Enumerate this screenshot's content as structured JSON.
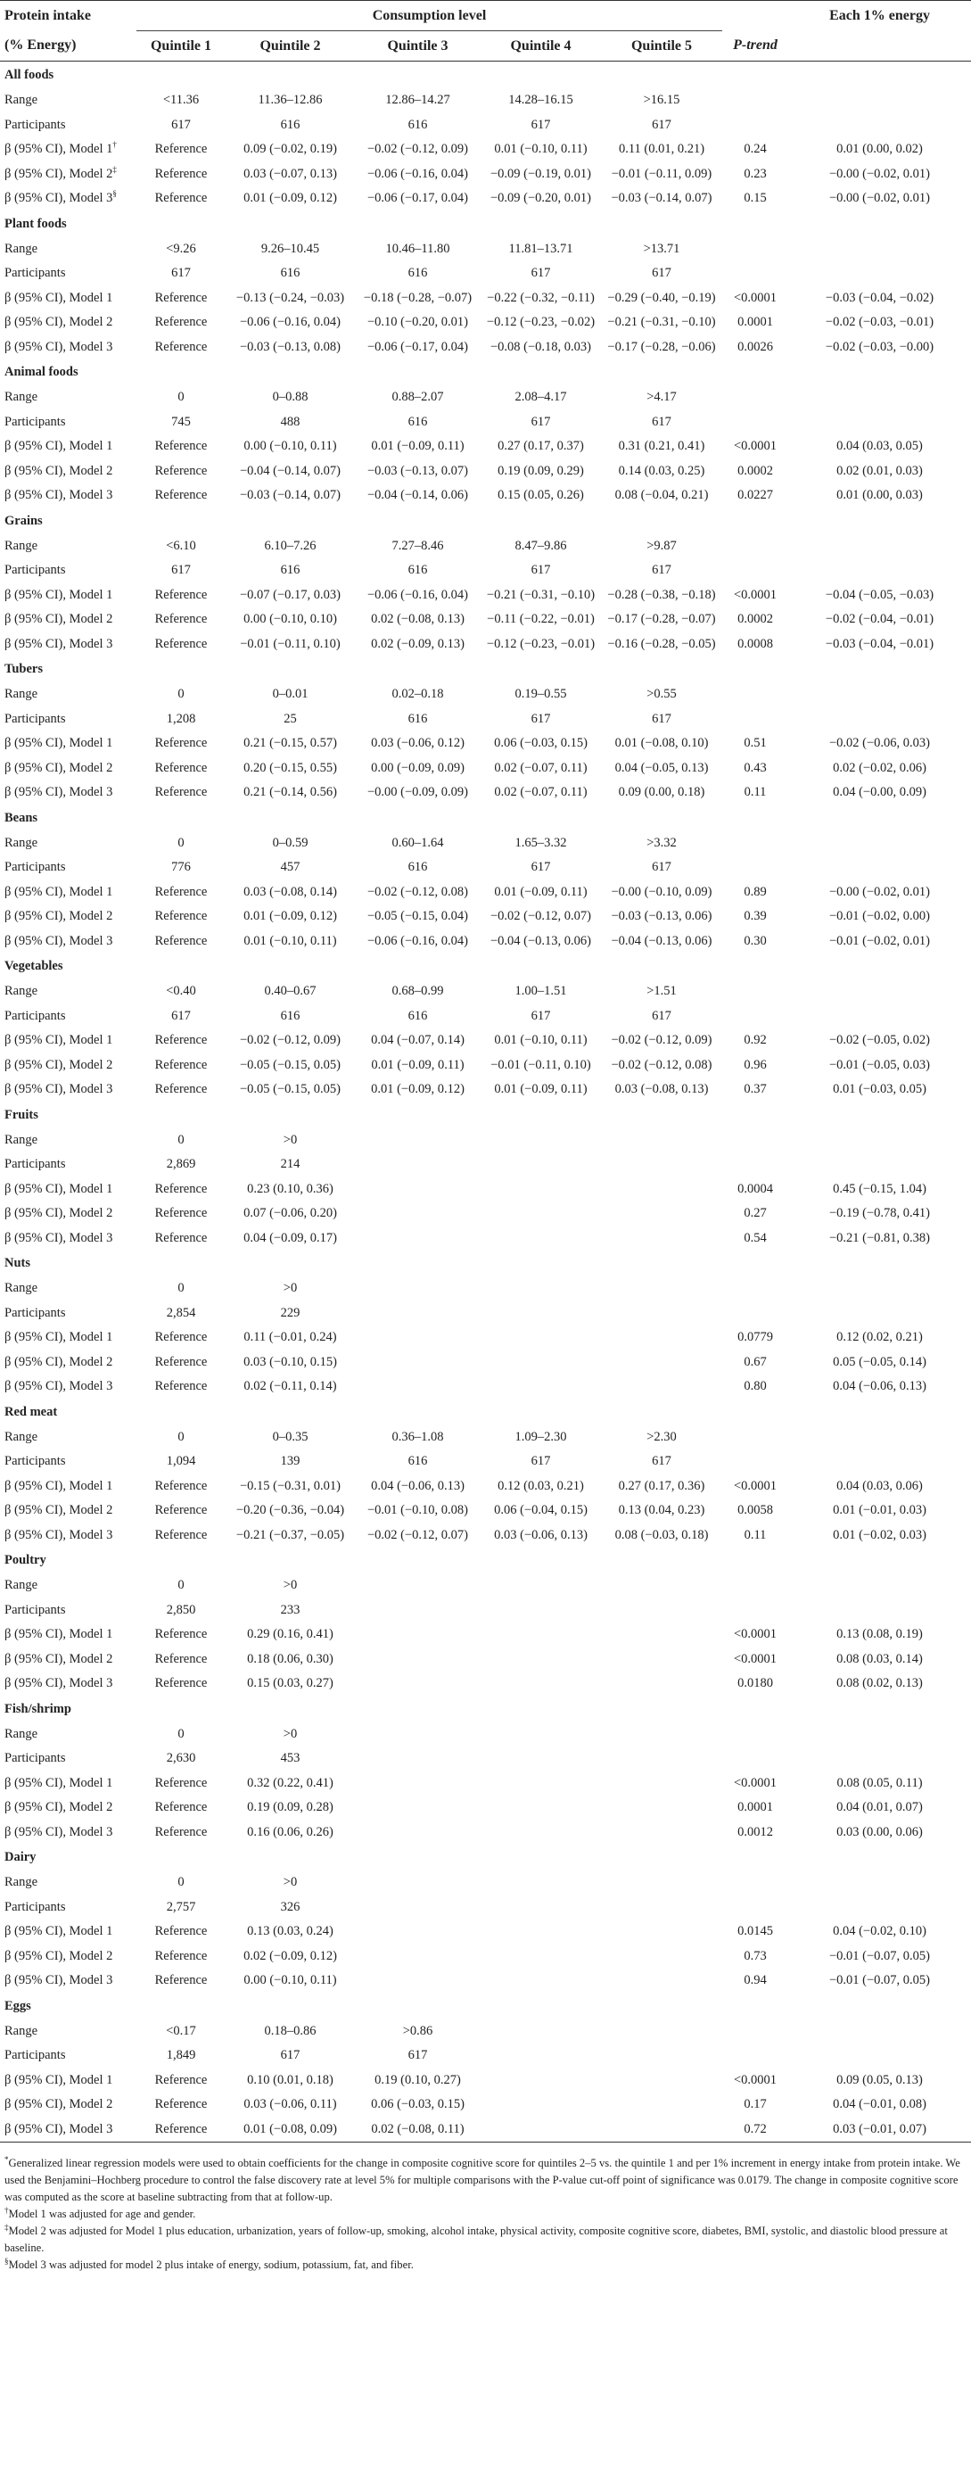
{
  "header": {
    "col1_line1": "Protein intake",
    "col1_line2": "(% Energy)",
    "group": "Consumption level",
    "each": "Each 1% energy",
    "q1": "Quintile 1",
    "q2": "Quintile 2",
    "q3": "Quintile 3",
    "q4": "Quintile 4",
    "q5": "Quintile 5",
    "p": "P-trend"
  },
  "sections": [
    {
      "title": "All foods",
      "rows": [
        [
          "Range",
          "<11.36",
          "11.36–12.86",
          "12.86–14.27",
          "14.28–16.15",
          ">16.15",
          "",
          ""
        ],
        [
          "Participants",
          "617",
          "616",
          "616",
          "617",
          "617",
          "",
          ""
        ],
        [
          "β (95% CI), Model 1†",
          "Reference",
          "0.09 (−0.02, 0.19)",
          "−0.02 (−0.12, 0.09)",
          "0.01 (−0.10, 0.11)",
          "0.11 (0.01, 0.21)",
          "0.24",
          "0.01 (0.00, 0.02)"
        ],
        [
          "β (95% CI), Model 2‡",
          "Reference",
          "0.03 (−0.07, 0.13)",
          "−0.06 (−0.16, 0.04)",
          "−0.09 (−0.19, 0.01)",
          "−0.01 (−0.11, 0.09)",
          "0.23",
          "−0.00 (−0.02, 0.01)"
        ],
        [
          "β (95% CI), Model 3§",
          "Reference",
          "0.01 (−0.09, 0.12)",
          "−0.06 (−0.17, 0.04)",
          "−0.09 (−0.20, 0.01)",
          "−0.03 (−0.14, 0.07)",
          "0.15",
          "−0.00 (−0.02, 0.01)"
        ]
      ]
    },
    {
      "title": "Plant foods",
      "rows": [
        [
          "Range",
          "<9.26",
          "9.26–10.45",
          "10.46–11.80",
          "11.81–13.71",
          ">13.71",
          "",
          ""
        ],
        [
          "Participants",
          "617",
          "616",
          "616",
          "617",
          "617",
          "",
          ""
        ],
        [
          "β (95% CI), Model 1",
          "Reference",
          "−0.13 (−0.24, −0.03)",
          "−0.18 (−0.28, −0.07)",
          "−0.22 (−0.32, −0.11)",
          "−0.29 (−0.40, −0.19)",
          "<0.0001",
          "−0.03 (−0.04, −0.02)"
        ],
        [
          "β (95% CI), Model 2",
          "Reference",
          "−0.06 (−0.16, 0.04)",
          "−0.10 (−0.20, 0.01)",
          "−0.12 (−0.23, −0.02)",
          "−0.21 (−0.31, −0.10)",
          "0.0001",
          "−0.02 (−0.03, −0.01)"
        ],
        [
          "β (95% CI), Model 3",
          "Reference",
          "−0.03 (−0.13, 0.08)",
          "−0.06 (−0.17, 0.04)",
          "−0.08 (−0.18, 0.03)",
          "−0.17 (−0.28, −0.06)",
          "0.0026",
          "−0.02 (−0.03, −0.00)"
        ]
      ]
    },
    {
      "title": "Animal foods",
      "rows": [
        [
          "Range",
          "0",
          "0–0.88",
          "0.88–2.07",
          "2.08–4.17",
          ">4.17",
          "",
          ""
        ],
        [
          "Participants",
          "745",
          "488",
          "616",
          "617",
          "617",
          "",
          ""
        ],
        [
          "β (95% CI), Model 1",
          "Reference",
          "0.00 (−0.10, 0.11)",
          "0.01 (−0.09, 0.11)",
          "0.27 (0.17, 0.37)",
          "0.31 (0.21, 0.41)",
          "<0.0001",
          "0.04 (0.03, 0.05)"
        ],
        [
          "β (95% CI), Model 2",
          "Reference",
          "−0.04 (−0.14, 0.07)",
          "−0.03 (−0.13, 0.07)",
          "0.19 (0.09, 0.29)",
          "0.14 (0.03, 0.25)",
          "0.0002",
          "0.02 (0.01, 0.03)"
        ],
        [
          "β (95% CI), Model 3",
          "Reference",
          "−0.03 (−0.14, 0.07)",
          "−0.04 (−0.14, 0.06)",
          "0.15 (0.05, 0.26)",
          "0.08 (−0.04, 0.21)",
          "0.0227",
          "0.01 (0.00, 0.03)"
        ]
      ]
    },
    {
      "title": "Grains",
      "rows": [
        [
          "Range",
          "<6.10",
          "6.10–7.26",
          "7.27–8.46",
          "8.47–9.86",
          ">9.87",
          "",
          ""
        ],
        [
          "Participants",
          "617",
          "616",
          "616",
          "617",
          "617",
          "",
          ""
        ],
        [
          "β (95% CI), Model 1",
          "Reference",
          "−0.07 (−0.17, 0.03)",
          "−0.06 (−0.16, 0.04)",
          "−0.21 (−0.31, −0.10)",
          "−0.28 (−0.38, −0.18)",
          "<0.0001",
          "−0.04 (−0.05, −0.03)"
        ],
        [
          "β (95% CI), Model 2",
          "Reference",
          "0.00 (−0.10, 0.10)",
          "0.02 (−0.08, 0.13)",
          "−0.11 (−0.22, −0.01)",
          "−0.17 (−0.28, −0.07)",
          "0.0002",
          "−0.02 (−0.04, −0.01)"
        ],
        [
          "β (95% CI), Model 3",
          "Reference",
          "−0.01 (−0.11, 0.10)",
          "0.02 (−0.09, 0.13)",
          "−0.12 (−0.23, −0.01)",
          "−0.16 (−0.28, −0.05)",
          "0.0008",
          "−0.03 (−0.04, −0.01)"
        ]
      ]
    },
    {
      "title": "Tubers",
      "rows": [
        [
          "Range",
          "0",
          "0–0.01",
          "0.02–0.18",
          "0.19–0.55",
          ">0.55",
          "",
          ""
        ],
        [
          "Participants",
          "1,208",
          "25",
          "616",
          "617",
          "617",
          "",
          ""
        ],
        [
          "β (95% CI), Model 1",
          "Reference",
          "0.21 (−0.15, 0.57)",
          "0.03 (−0.06, 0.12)",
          "0.06 (−0.03, 0.15)",
          "0.01 (−0.08, 0.10)",
          "0.51",
          "−0.02 (−0.06, 0.03)"
        ],
        [
          "β (95% CI), Model 2",
          "Reference",
          "0.20 (−0.15, 0.55)",
          "0.00 (−0.09, 0.09)",
          "0.02 (−0.07, 0.11)",
          "0.04 (−0.05, 0.13)",
          "0.43",
          "0.02 (−0.02, 0.06)"
        ],
        [
          "β (95% CI), Model 3",
          "Reference",
          "0.21 (−0.14, 0.56)",
          "−0.00 (−0.09, 0.09)",
          "0.02 (−0.07, 0.11)",
          "0.09 (0.00, 0.18)",
          "0.11",
          "0.04 (−0.00, 0.09)"
        ]
      ]
    },
    {
      "title": "Beans",
      "rows": [
        [
          "Range",
          "0",
          "0–0.59",
          "0.60–1.64",
          "1.65–3.32",
          ">3.32",
          "",
          ""
        ],
        [
          "Participants",
          "776",
          "457",
          "616",
          "617",
          "617",
          "",
          ""
        ],
        [
          "β (95% CI), Model 1",
          "Reference",
          "0.03 (−0.08, 0.14)",
          "−0.02 (−0.12, 0.08)",
          "0.01 (−0.09, 0.11)",
          "−0.00 (−0.10, 0.09)",
          "0.89",
          "−0.00 (−0.02, 0.01)"
        ],
        [
          "β (95% CI), Model 2",
          "Reference",
          "0.01 (−0.09, 0.12)",
          "−0.05 (−0.15, 0.04)",
          "−0.02 (−0.12, 0.07)",
          "−0.03 (−0.13, 0.06)",
          "0.39",
          "−0.01 (−0.02, 0.00)"
        ],
        [
          "β (95% CI), Model 3",
          "Reference",
          "0.01 (−0.10, 0.11)",
          "−0.06 (−0.16, 0.04)",
          "−0.04 (−0.13, 0.06)",
          "−0.04 (−0.13, 0.06)",
          "0.30",
          "−0.01 (−0.02, 0.01)"
        ]
      ]
    },
    {
      "title": "Vegetables",
      "rows": [
        [
          "Range",
          "<0.40",
          "0.40–0.67",
          "0.68–0.99",
          "1.00–1.51",
          ">1.51",
          "",
          ""
        ],
        [
          "Participants",
          "617",
          "616",
          "616",
          "617",
          "617",
          "",
          ""
        ],
        [
          "β (95% CI), Model 1",
          "Reference",
          "−0.02 (−0.12, 0.09)",
          "0.04 (−0.07, 0.14)",
          "0.01 (−0.10, 0.11)",
          "−0.02 (−0.12, 0.09)",
          "0.92",
          "−0.02 (−0.05, 0.02)"
        ],
        [
          "β (95% CI), Model 2",
          "Reference",
          "−0.05 (−0.15, 0.05)",
          "0.01 (−0.09, 0.11)",
          "−0.01 (−0.11, 0.10)",
          "−0.02 (−0.12, 0.08)",
          "0.96",
          "−0.01 (−0.05, 0.03)"
        ],
        [
          "β (95% CI), Model 3",
          "Reference",
          "−0.05 (−0.15, 0.05)",
          "0.01 (−0.09, 0.12)",
          "0.01 (−0.09, 0.11)",
          "0.03 (−0.08, 0.13)",
          "0.37",
          "0.01 (−0.03, 0.05)"
        ]
      ]
    },
    {
      "title": "Fruits",
      "rows": [
        [
          "Range",
          "0",
          ">0",
          "",
          "",
          "",
          "",
          ""
        ],
        [
          "Participants",
          "2,869",
          "214",
          "",
          "",
          "",
          "",
          ""
        ],
        [
          "β (95% CI), Model 1",
          "Reference",
          "0.23 (0.10, 0.36)",
          "",
          "",
          "",
          "0.0004",
          "0.45 (−0.15, 1.04)"
        ],
        [
          "β (95% CI), Model 2",
          "Reference",
          "0.07 (−0.06, 0.20)",
          "",
          "",
          "",
          "0.27",
          "−0.19 (−0.78, 0.41)"
        ],
        [
          "β (95% CI), Model 3",
          "Reference",
          "0.04 (−0.09, 0.17)",
          "",
          "",
          "",
          "0.54",
          "−0.21 (−0.81, 0.38)"
        ]
      ]
    },
    {
      "title": "Nuts",
      "rows": [
        [
          "Range",
          "0",
          ">0",
          "",
          "",
          "",
          "",
          ""
        ],
        [
          "Participants",
          "2,854",
          "229",
          "",
          "",
          "",
          "",
          ""
        ],
        [
          "β (95% CI), Model 1",
          "Reference",
          "0.11 (−0.01, 0.24)",
          "",
          "",
          "",
          "0.0779",
          "0.12 (0.02, 0.21)"
        ],
        [
          "β (95% CI), Model 2",
          "Reference",
          "0.03 (−0.10, 0.15)",
          "",
          "",
          "",
          "0.67",
          "0.05 (−0.05, 0.14)"
        ],
        [
          "β (95% CI), Model 3",
          "Reference",
          "0.02 (−0.11, 0.14)",
          "",
          "",
          "",
          "0.80",
          "0.04 (−0.06, 0.13)"
        ]
      ]
    },
    {
      "title": "Red meat",
      "rows": [
        [
          "Range",
          "0",
          "0–0.35",
          "0.36–1.08",
          "1.09–2.30",
          ">2.30",
          "",
          ""
        ],
        [
          "Participants",
          "1,094",
          "139",
          "616",
          "617",
          "617",
          "",
          ""
        ],
        [
          "β (95% CI), Model 1",
          "Reference",
          "−0.15 (−0.31, 0.01)",
          "0.04 (−0.06, 0.13)",
          "0.12 (0.03, 0.21)",
          "0.27 (0.17, 0.36)",
          "<0.0001",
          "0.04 (0.03, 0.06)"
        ],
        [
          "β (95% CI), Model 2",
          "Reference",
          "−0.20 (−0.36, −0.04)",
          "−0.01 (−0.10, 0.08)",
          "0.06 (−0.04, 0.15)",
          "0.13 (0.04, 0.23)",
          "0.0058",
          "0.01 (−0.01, 0.03)"
        ],
        [
          "β (95% CI), Model 3",
          "Reference",
          "−0.21 (−0.37, −0.05)",
          "−0.02 (−0.12, 0.07)",
          "0.03 (−0.06, 0.13)",
          "0.08 (−0.03, 0.18)",
          "0.11",
          "0.01 (−0.02, 0.03)"
        ]
      ]
    },
    {
      "title": "Poultry",
      "rows": [
        [
          "Range",
          "0",
          ">0",
          "",
          "",
          "",
          "",
          ""
        ],
        [
          "Participants",
          "2,850",
          "233",
          "",
          "",
          "",
          "",
          ""
        ],
        [
          "β (95% CI), Model 1",
          "Reference",
          "0.29 (0.16, 0.41)",
          "",
          "",
          "",
          "<0.0001",
          "0.13 (0.08, 0.19)"
        ],
        [
          "β (95% CI), Model 2",
          "Reference",
          "0.18 (0.06, 0.30)",
          "",
          "",
          "",
          "<0.0001",
          "0.08 (0.03, 0.14)"
        ],
        [
          "β (95% CI), Model 3",
          "Reference",
          "0.15 (0.03, 0.27)",
          "",
          "",
          "",
          "0.0180",
          "0.08 (0.02, 0.13)"
        ]
      ]
    },
    {
      "title": "Fish/shrimp",
      "rows": [
        [
          "Range",
          "0",
          ">0",
          "",
          "",
          "",
          "",
          ""
        ],
        [
          "Participants",
          "2,630",
          "453",
          "",
          "",
          "",
          "",
          ""
        ],
        [
          "β (95% CI), Model 1",
          "Reference",
          "0.32 (0.22, 0.41)",
          "",
          "",
          "",
          "<0.0001",
          "0.08 (0.05, 0.11)"
        ],
        [
          "β (95% CI), Model 2",
          "Reference",
          "0.19 (0.09, 0.28)",
          "",
          "",
          "",
          "0.0001",
          "0.04 (0.01, 0.07)"
        ],
        [
          "β (95% CI), Model 3",
          "Reference",
          "0.16 (0.06, 0.26)",
          "",
          "",
          "",
          "0.0012",
          "0.03 (0.00, 0.06)"
        ]
      ]
    },
    {
      "title": "Dairy",
      "rows": [
        [
          "Range",
          "0",
          ">0",
          "",
          "",
          "",
          "",
          ""
        ],
        [
          "Participants",
          "2,757",
          "326",
          "",
          "",
          "",
          "",
          ""
        ],
        [
          "β (95% CI), Model 1",
          "Reference",
          "0.13 (0.03, 0.24)",
          "",
          "",
          "",
          "0.0145",
          "0.04 (−0.02, 0.10)"
        ],
        [
          "β (95% CI), Model 2",
          "Reference",
          "0.02 (−0.09, 0.12)",
          "",
          "",
          "",
          "0.73",
          "−0.01 (−0.07, 0.05)"
        ],
        [
          "β (95% CI), Model 3",
          "Reference",
          "0.00 (−0.10, 0.11)",
          "",
          "",
          "",
          "0.94",
          "−0.01 (−0.07, 0.05)"
        ]
      ]
    },
    {
      "title": "Eggs",
      "rows": [
        [
          "Range",
          "<0.17",
          "0.18–0.86",
          ">0.86",
          "",
          "",
          "",
          ""
        ],
        [
          "Participants",
          "1,849",
          "617",
          "617",
          "",
          "",
          "",
          ""
        ],
        [
          "β (95% CI), Model 1",
          "Reference",
          "0.10 (0.01, 0.18)",
          "0.19 (0.10, 0.27)",
          "",
          "",
          "<0.0001",
          "0.09 (0.05, 0.13)"
        ],
        [
          "β (95% CI), Model 2",
          "Reference",
          "0.03 (−0.06, 0.11)",
          "0.06 (−0.03, 0.15)",
          "",
          "",
          "0.17",
          "0.04 (−0.01, 0.08)"
        ],
        [
          "β (95% CI), Model 3",
          "Reference",
          "0.01 (−0.08, 0.09)",
          "0.02 (−0.08, 0.11)",
          "",
          "",
          "0.72",
          "0.03 (−0.01, 0.07)"
        ]
      ]
    }
  ],
  "footnotes": [
    {
      "mark": "*",
      "text": "Generalized linear regression models were used to obtain coefficients for the change in composite cognitive score for quintiles 2–5 vs. the quintile 1 and per 1% increment in energy intake from protein intake. We used the Benjamini–Hochberg procedure to control the false discovery rate at level 5% for multiple comparisons with the P-value cut-off point of significance was 0.0179. The change in composite cognitive score was computed as the score at baseline subtracting from that at follow-up."
    },
    {
      "mark": "†",
      "text": "Model 1 was adjusted for age and gender."
    },
    {
      "mark": "‡",
      "text": "Model 2 was adjusted for Model 1 plus education, urbanization, years of follow-up, smoking, alcohol intake, physical activity, composite cognitive score, diabetes, BMI, systolic, and diastolic blood pressure at baseline."
    },
    {
      "mark": "§",
      "text": "Model 3 was adjusted for model 2 plus intake of energy, sodium, potassium, fat, and fiber."
    }
  ]
}
